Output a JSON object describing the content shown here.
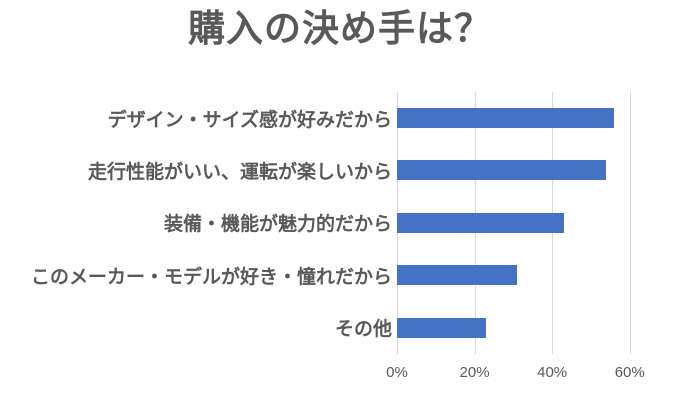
{
  "chart_data": {
    "type": "bar",
    "orientation": "horizontal",
    "title": "購入の決め手は？",
    "categories": [
      "デザイン・サイズ感が好みだから",
      "走行性能がいい、運転が楽しいから",
      "装備・機能が魅力的だから",
      "このメーカー・モデルが好き・憧れだから",
      "その他"
    ],
    "values": [
      56,
      54,
      43,
      31,
      23
    ],
    "unit": "%",
    "xlabel": "",
    "ylabel": "",
    "xlim": [
      0,
      69
    ],
    "x_ticks": [
      {
        "value": 0,
        "label": "0%"
      },
      {
        "value": 20,
        "label": "20%"
      },
      {
        "value": 40,
        "label": "40%"
      },
      {
        "value": 60,
        "label": "60%"
      }
    ],
    "grid": "vertical-gridlines-on",
    "legend": "none"
  },
  "colors": {
    "bar": "#4472C4",
    "text": "#595959",
    "gridline": "#D9D9D9",
    "background": "#FFFFFF"
  }
}
